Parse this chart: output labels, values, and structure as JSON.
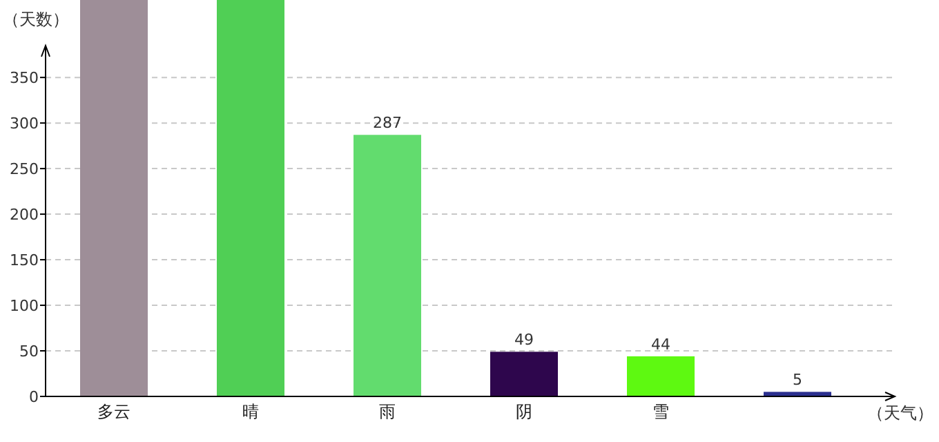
{
  "chart_data": {
    "type": "bar",
    "ylabel": "（天数）",
    "xlabel": "（天气）",
    "categories": [
      "多云",
      "晴",
      "雨",
      "阴",
      "雪",
      null
    ],
    "values": [
      435,
      435,
      287,
      49,
      44,
      5
    ],
    "value_labels": [
      null,
      null,
      "287",
      "49",
      "44",
      "5"
    ],
    "colors": [
      "#9e8e98",
      "#50cf55",
      "#62dc6e",
      "#2e064d",
      "#5ef911",
      "#2b2f8f"
    ],
    "ylim": [
      0,
      435
    ],
    "yticks": [
      0,
      50,
      100,
      150,
      200,
      250,
      300,
      350
    ],
    "grid": "y"
  }
}
